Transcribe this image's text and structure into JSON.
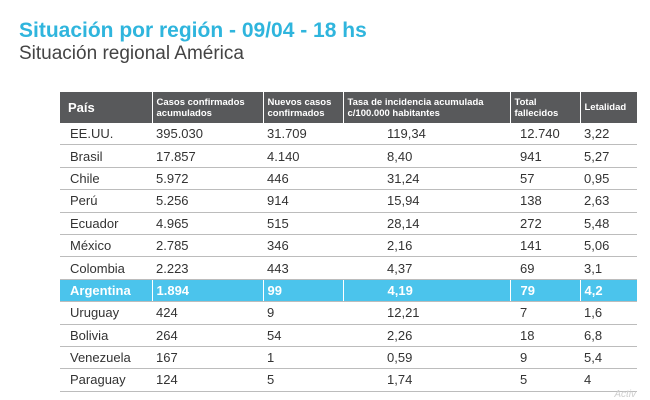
{
  "header": {
    "title": "Situación por región - 09/04 - 18 hs",
    "subtitle": "Situación regional América"
  },
  "colors": {
    "title": "#2fb5dd",
    "header_bg": "#58595b",
    "highlight_bg": "#4bc4ec"
  },
  "table": {
    "columns": [
      "País",
      "Casos confirmados acumulados",
      "Nuevos casos confirmados",
      "Tasa de incidencia acumulada c/100.000 habitantes",
      "Total fallecidos",
      "Letalidad"
    ],
    "highlight_row": "Argentina",
    "rows": [
      [
        "EE.UU.",
        "395.030",
        "31.709",
        "119,34",
        "12.740",
        "3,22"
      ],
      [
        "Brasil",
        "17.857",
        "4.140",
        "8,40",
        "941",
        "5,27"
      ],
      [
        "Chile",
        "5.972",
        "446",
        "31,24",
        "57",
        "0,95"
      ],
      [
        "Perú",
        "5.256",
        "914",
        "15,94",
        "138",
        "2,63"
      ],
      [
        "Ecuador",
        "4.965",
        "515",
        "28,14",
        "272",
        "5,48"
      ],
      [
        "México",
        "2.785",
        "346",
        "2,16",
        "141",
        "5,06"
      ],
      [
        "Colombia",
        "2.223",
        "443",
        "4,37",
        "69",
        "3,1"
      ],
      [
        "Argentina",
        "1.894",
        "99",
        "4,19",
        "79",
        "4,2"
      ],
      [
        "Uruguay",
        "424",
        "9",
        "12,21",
        "7",
        "1,6"
      ],
      [
        "Bolivia",
        "264",
        "54",
        "2,26",
        "18",
        "6,8"
      ],
      [
        "Venezuela",
        "167",
        "1",
        "0,59",
        "9",
        "5,4"
      ],
      [
        "Paraguay",
        "124",
        "5",
        "1,74",
        "5",
        "4"
      ]
    ]
  },
  "watermark": "Activ"
}
